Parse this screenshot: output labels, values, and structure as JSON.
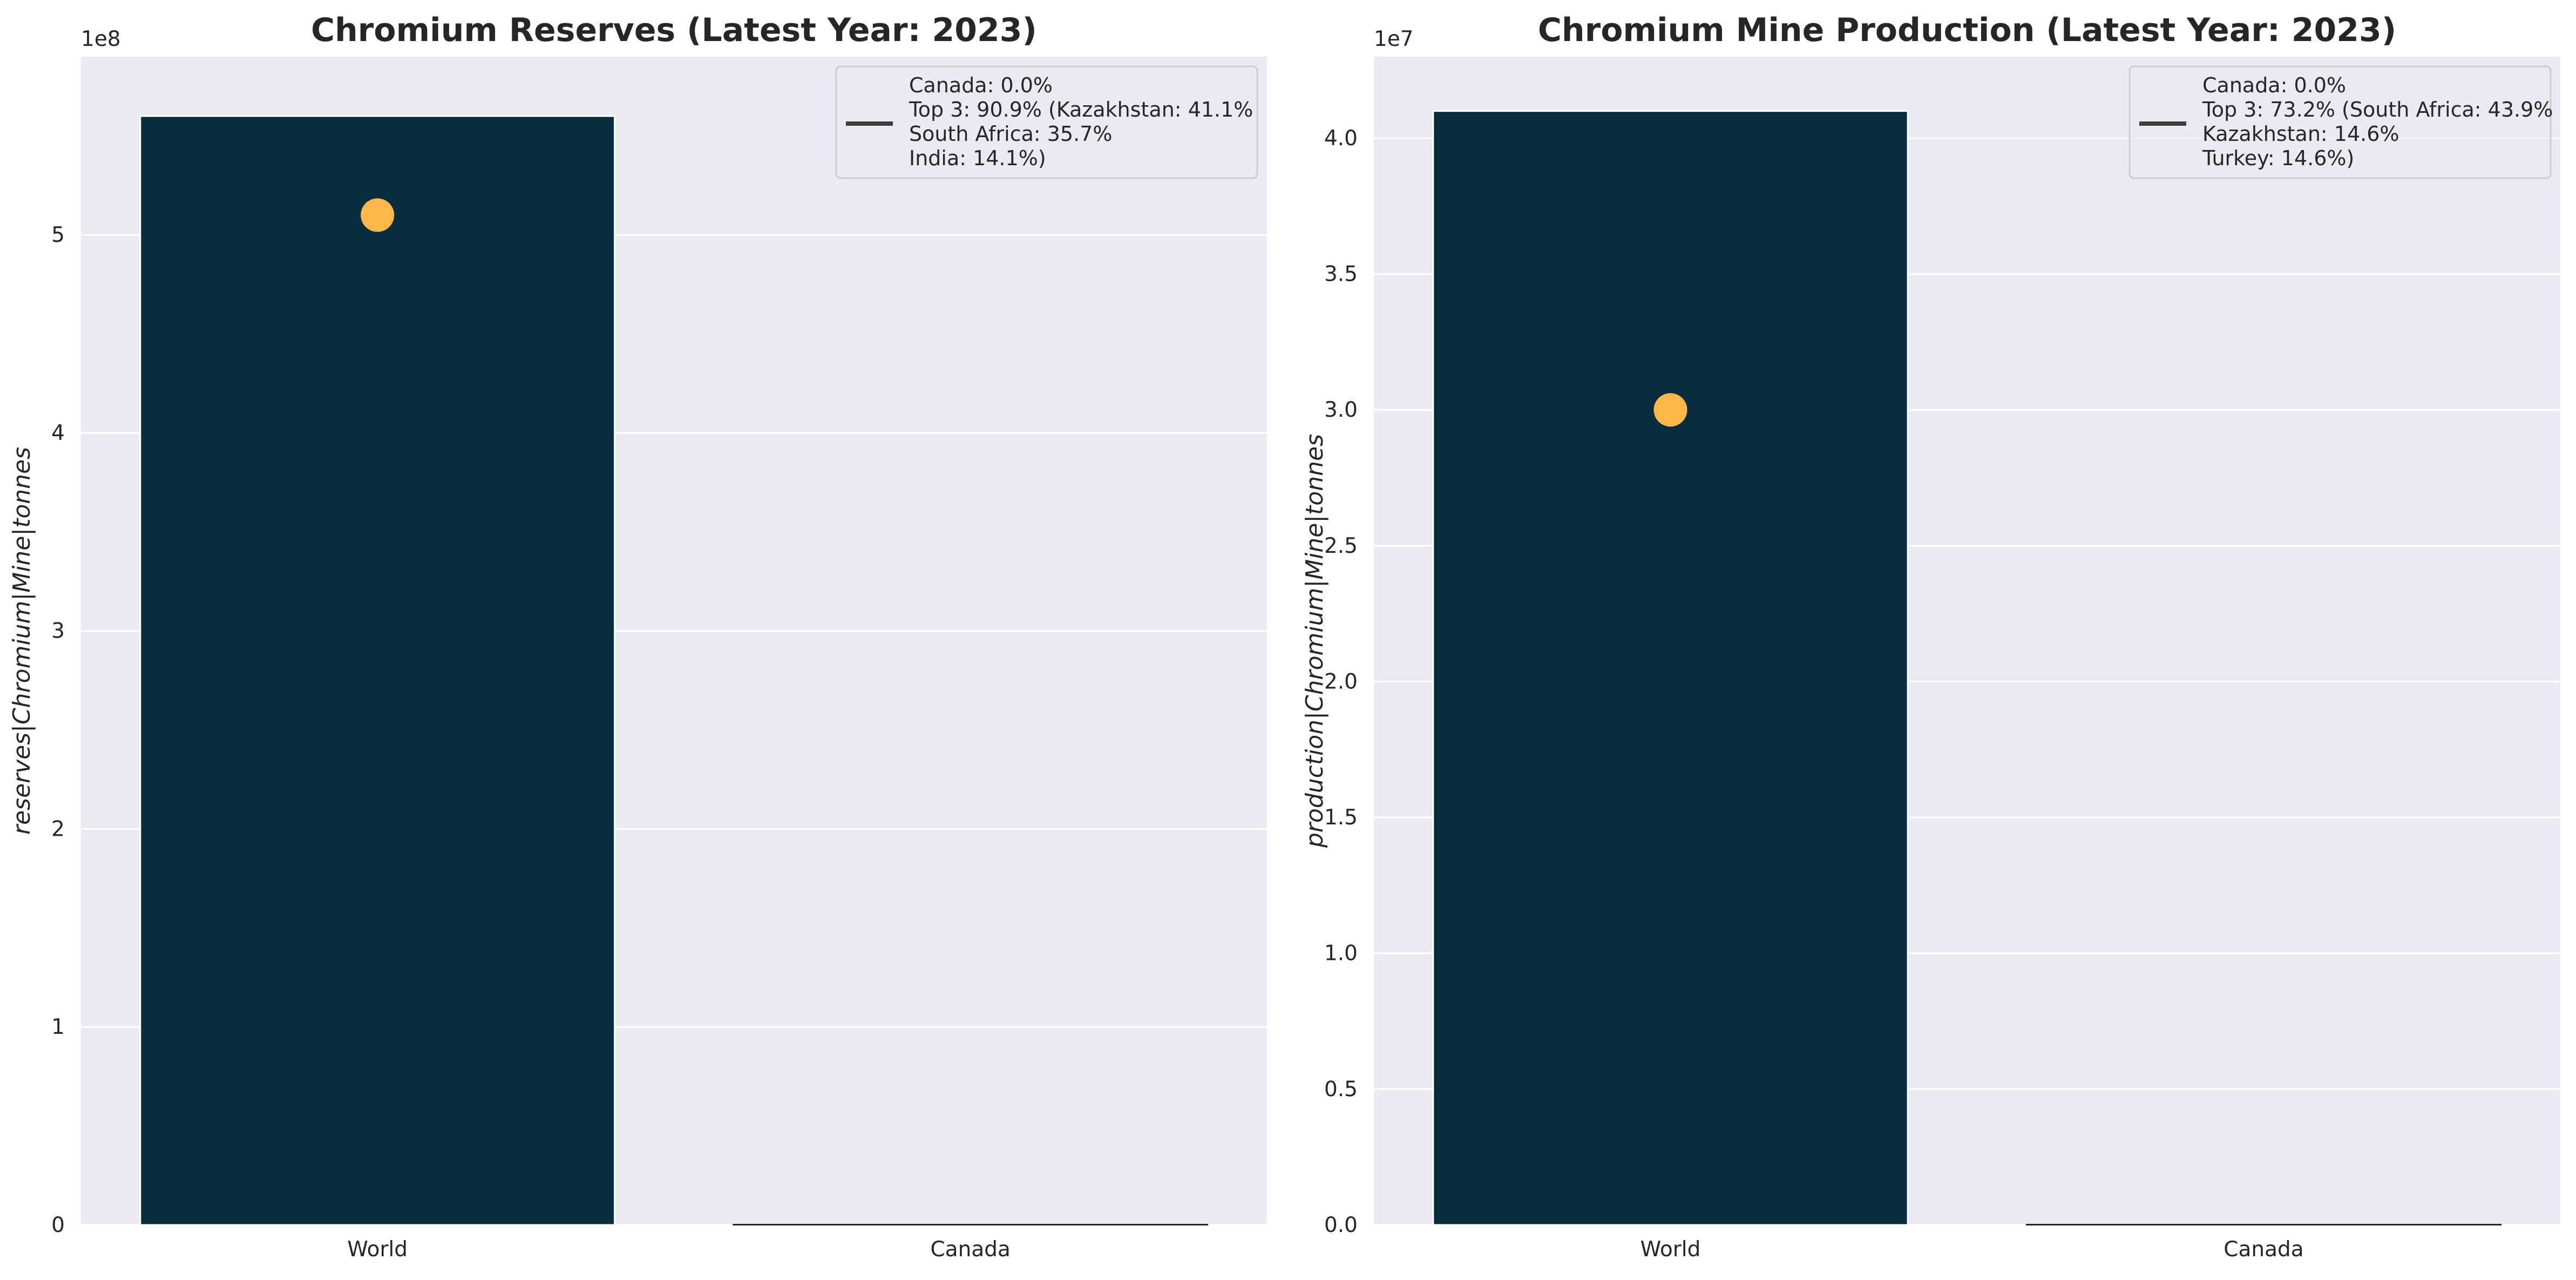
{
  "chart_data": [
    {
      "type": "bar",
      "title": "Chromium Reserves (Latest Year: 2023)",
      "ylabel": "reserves|Chromium|Mine|tonnes",
      "xlabel": "",
      "offset_label": "1e8",
      "categories": [
        "World",
        "Canada"
      ],
      "values": [
        560000000,
        0
      ],
      "marker": {
        "category": "World",
        "value": 510000000,
        "color": "#ffb74a"
      },
      "ylim": [
        0,
        590000000
      ],
      "yticks": [
        0,
        100000000,
        200000000,
        300000000,
        400000000,
        500000000
      ],
      "ytick_labels": [
        "0",
        "1",
        "2",
        "3",
        "4",
        "5"
      ],
      "bar_color": "#0a2c3f",
      "grid": true,
      "legend_position": "upper right",
      "legend_lines": [
        "Canada: 0.0%",
        "Top 3: 90.9% (Kazakhstan: 41.1%",
        "South Africa: 35.7%",
        "India: 14.1%)"
      ]
    },
    {
      "type": "bar",
      "title": "Chromium Mine Production (Latest Year: 2023)",
      "ylabel": "production|Chromium|Mine|tonnes",
      "xlabel": "",
      "offset_label": "1e7",
      "categories": [
        "World",
        "Canada"
      ],
      "values": [
        41000000,
        0
      ],
      "marker": {
        "category": "World",
        "value": 30000000,
        "color": "#ffb74a"
      },
      "ylim": [
        0,
        43000000
      ],
      "yticks": [
        0,
        5000000,
        10000000,
        15000000,
        20000000,
        25000000,
        30000000,
        35000000,
        40000000
      ],
      "ytick_labels": [
        "0.0",
        "0.5",
        "1.0",
        "1.5",
        "2.0",
        "2.5",
        "3.0",
        "3.5",
        "4.0"
      ],
      "bar_color": "#0a2c3f",
      "grid": true,
      "legend_position": "upper right",
      "legend_lines": [
        "Canada: 0.0%",
        "Top 3: 73.2% (South Africa: 43.9%",
        "Kazakhstan: 14.6%",
        "Turkey: 14.6%)"
      ]
    }
  ]
}
